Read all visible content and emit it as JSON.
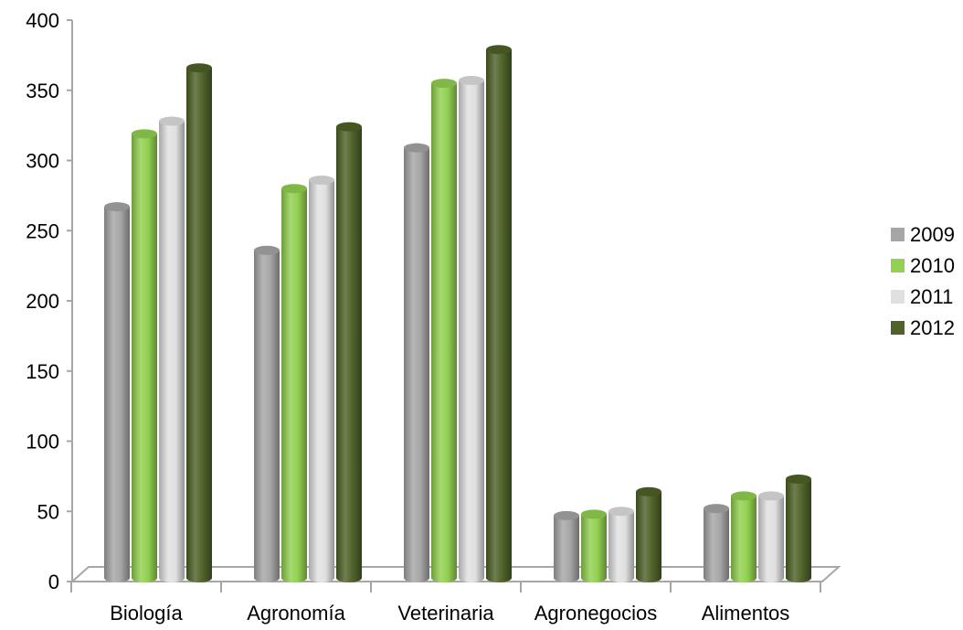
{
  "chart_data": {
    "type": "bar",
    "title": "",
    "xlabel": "",
    "ylabel": "",
    "ylim": [
      0,
      400
    ],
    "yticks": [
      0,
      50,
      100,
      150,
      200,
      250,
      300,
      350,
      400
    ],
    "grid": false,
    "legend_position": "right",
    "categories": [
      "Biología",
      "Agronomía",
      "Veterinaria",
      "Agronegocios",
      "Alimentos"
    ],
    "series": [
      {
        "name": "2009",
        "color": "#a6a6a6",
        "values": [
          267,
          236,
          309,
          47,
          52
        ]
      },
      {
        "name": "2010",
        "color": "#92d050",
        "values": [
          319,
          280,
          355,
          48,
          61
        ]
      },
      {
        "name": "2011",
        "color": "#e0e0e0",
        "values": [
          328,
          286,
          357,
          50,
          61
        ]
      },
      {
        "name": "2012",
        "color": "#4f6228",
        "values": [
          366,
          324,
          379,
          64,
          73
        ]
      }
    ]
  }
}
